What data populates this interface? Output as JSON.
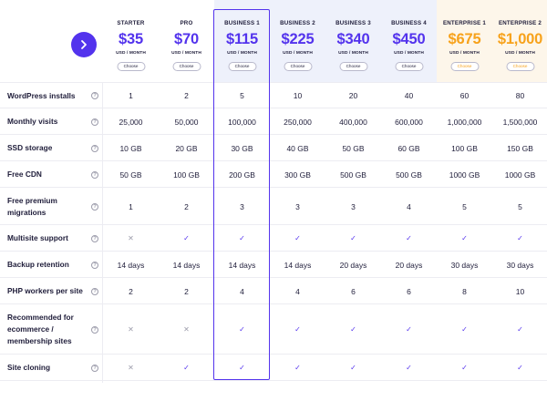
{
  "header": {
    "plans": [
      {
        "name": "STARTER",
        "price": "$35",
        "unit": "USD / MONTH",
        "choose": "Choose",
        "tier": "standard"
      },
      {
        "name": "PRO",
        "price": "$70",
        "unit": "USD / MONTH",
        "choose": "Choose",
        "tier": "standard"
      },
      {
        "name": "BUSINESS 1",
        "price": "$115",
        "unit": "USD / MONTH",
        "choose": "Choose",
        "tier": "business"
      },
      {
        "name": "BUSINESS 2",
        "price": "$225",
        "unit": "USD / MONTH",
        "choose": "Choose",
        "tier": "business"
      },
      {
        "name": "BUSINESS 3",
        "price": "$340",
        "unit": "USD / MONTH",
        "choose": "Choose",
        "tier": "business"
      },
      {
        "name": "BUSINESS 4",
        "price": "$450",
        "unit": "USD / MONTH",
        "choose": "Choose",
        "tier": "business"
      },
      {
        "name": "ENTERPRISE 1",
        "price": "$675",
        "unit": "USD / MONTH",
        "choose": "Choose",
        "tier": "enterprise"
      },
      {
        "name": "ENTERPRISE 2",
        "price": "$1,000",
        "unit": "USD / MONTH",
        "choose": "Choose",
        "tier": "enterprise"
      }
    ],
    "next_icon": "chevron-right-icon"
  },
  "colors": {
    "accent": "#5333ed",
    "enterprise": "#f7a21b",
    "business_bg": "#eef1fb",
    "enterprise_bg": "#fdf6ea",
    "cross": "#9c9cab"
  },
  "rows": [
    {
      "label": "WordPress installs",
      "values": [
        "1",
        "2",
        "5",
        "10",
        "20",
        "40",
        "60",
        "80"
      ]
    },
    {
      "label": "Monthly visits",
      "values": [
        "25,000",
        "50,000",
        "100,000",
        "250,000",
        "400,000",
        "600,000",
        "1,000,000",
        "1,500,000"
      ]
    },
    {
      "label": "SSD storage",
      "values": [
        "10 GB",
        "20 GB",
        "30 GB",
        "40 GB",
        "50 GB",
        "60 GB",
        "100 GB",
        "150 GB"
      ]
    },
    {
      "label": "Free CDN",
      "values": [
        "50 GB",
        "100 GB",
        "200 GB",
        "300 GB",
        "500 GB",
        "500 GB",
        "1000 GB",
        "1000 GB"
      ]
    },
    {
      "label": "Free premium migrations",
      "values": [
        "1",
        "2",
        "3",
        "3",
        "3",
        "4",
        "5",
        "5"
      ]
    },
    {
      "label": "Multisite support",
      "values": [
        "✕",
        "✓",
        "✓",
        "✓",
        "✓",
        "✓",
        "✓",
        "✓"
      ]
    },
    {
      "label": "Backup retention",
      "values": [
        "14 days",
        "14 days",
        "14 days",
        "14 days",
        "20 days",
        "20 days",
        "30 days",
        "30 days"
      ]
    },
    {
      "label": "PHP workers per site",
      "values": [
        "2",
        "2",
        "4",
        "4",
        "6",
        "6",
        "8",
        "10"
      ]
    },
    {
      "label": "Recommended for ecommerce / membership sites",
      "values": [
        "✕",
        "✕",
        "✓",
        "✓",
        "✓",
        "✓",
        "✓",
        "✓"
      ]
    },
    {
      "label": "Site cloning",
      "values": [
        "✕",
        "✓",
        "✓",
        "✓",
        "✓",
        "✓",
        "✓",
        "✓"
      ]
    }
  ],
  "help_glyph": "?"
}
